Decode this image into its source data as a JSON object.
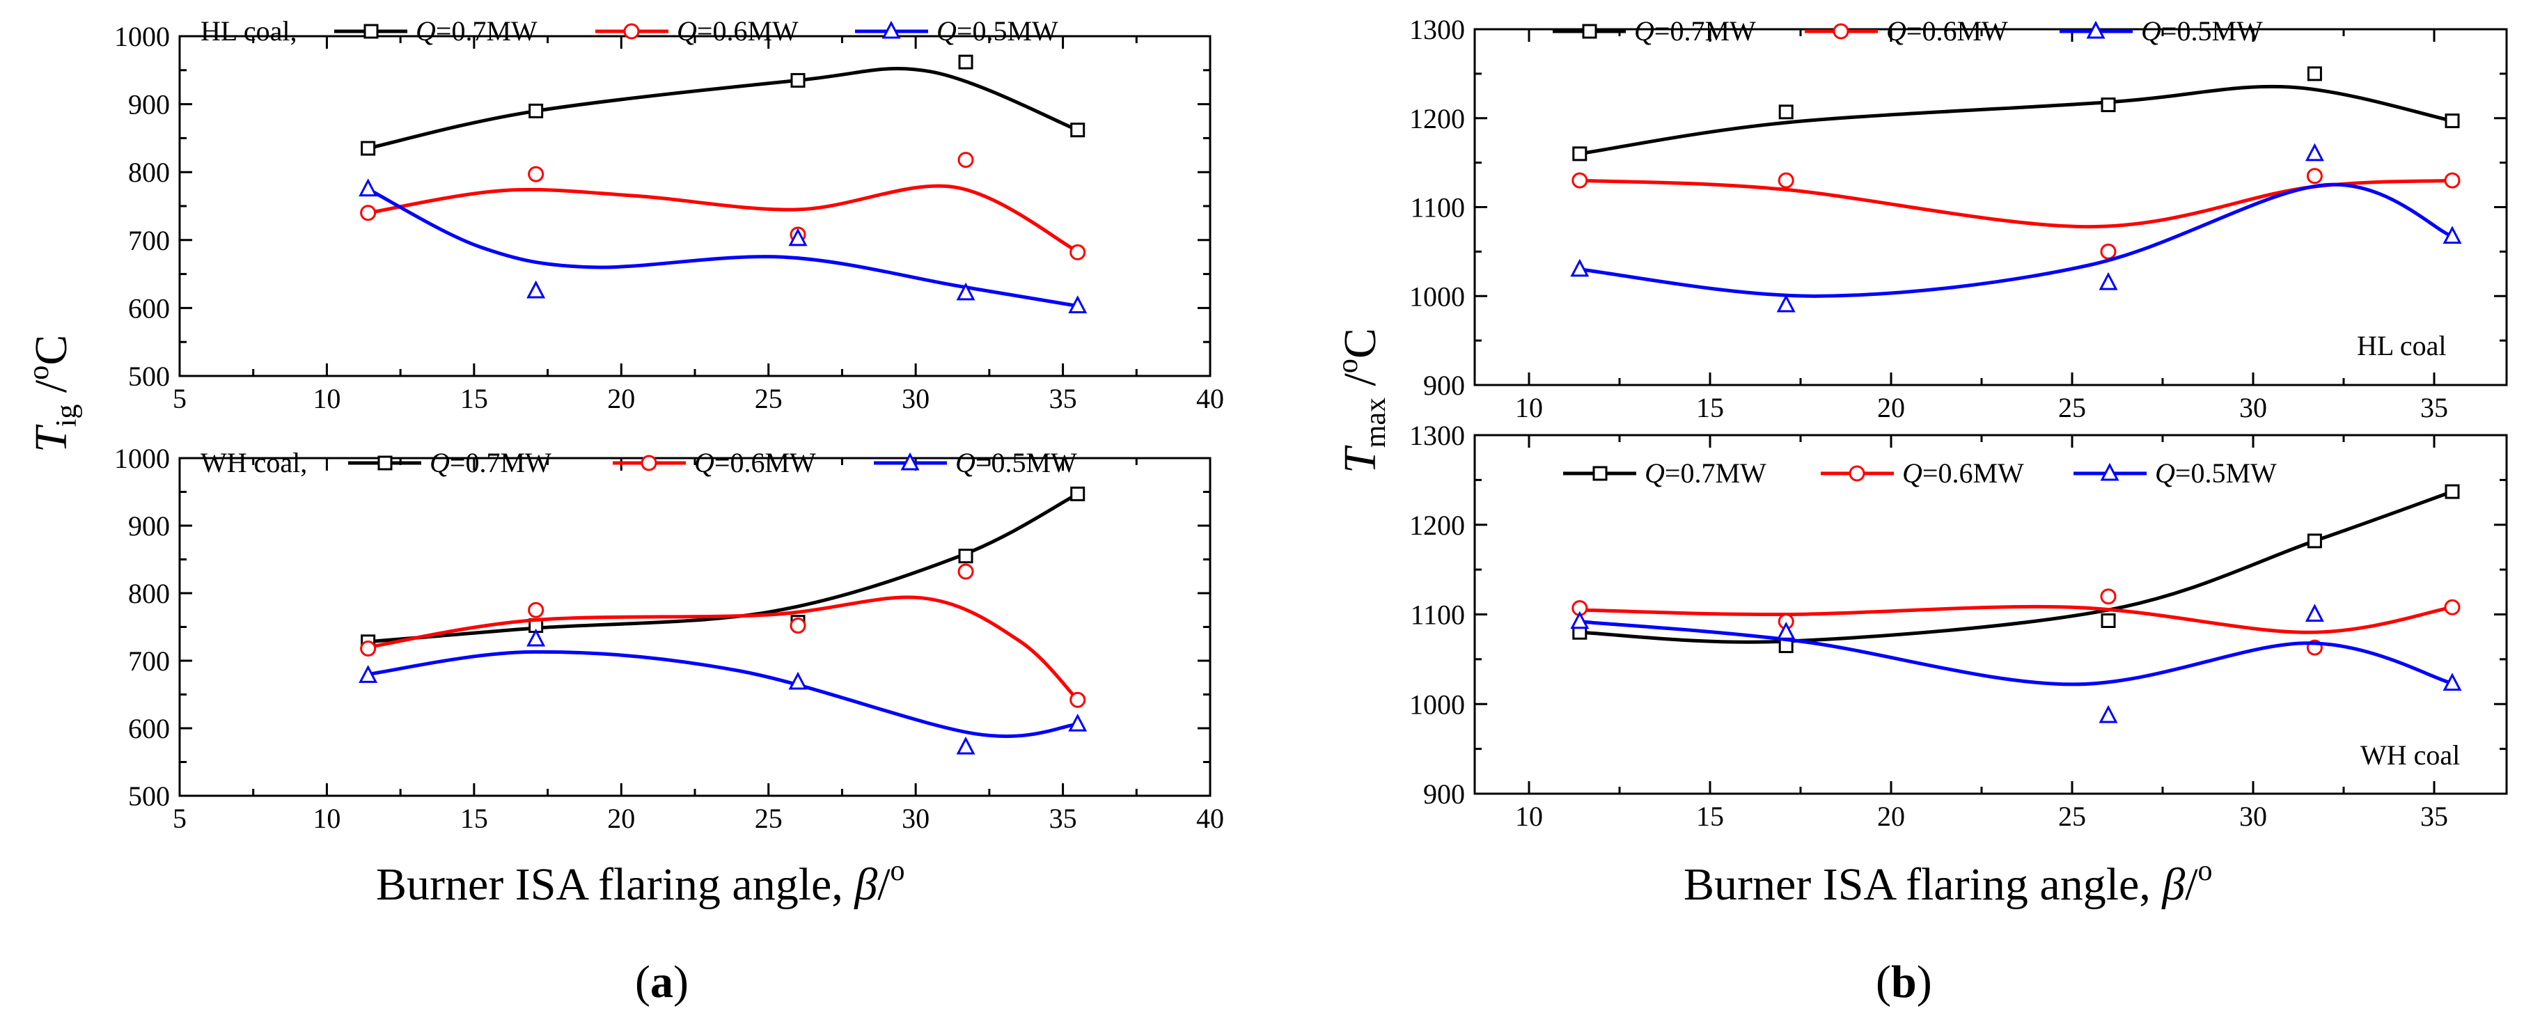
{
  "colors": {
    "Q07": "#000000",
    "Q06": "#ff0000",
    "Q05": "#0000ff"
  },
  "legend": {
    "q_symbol": "Q",
    "q07": "=0.7MW",
    "q06": "=0.6MW",
    "q05": "=0.5MW"
  },
  "panel_a": {
    "label": "(a)",
    "y_label_main": "T",
    "y_label_sub": "ig",
    "y_label_unit": " /",
    "y_label_deg": "o",
    "y_label_c": "C",
    "x_label": "Burner ISA flaring angle, ",
    "x_beta": "β",
    "x_slash": "/",
    "x_deg": "o",
    "top_prefix": "HL coal,",
    "bottom_prefix": "WH coal,"
  },
  "panel_b": {
    "label": "(b)",
    "y_label_main": "T",
    "y_label_sub": "max",
    "y_label_unit": " /",
    "y_label_deg": "o",
    "y_label_c": "C",
    "x_label": "Burner ISA flaring angle, ",
    "x_beta": "β",
    "x_slash": "/",
    "x_deg": "o",
    "top_note": "HL coal",
    "bottom_note": "WH coal"
  },
  "chart_data": [
    {
      "id": "a-top",
      "type": "scatter",
      "description": "Ignition temperature vs. flaring angle, HL coal",
      "xlim": [
        5,
        40
      ],
      "ylim": [
        500,
        1000
      ],
      "xticks": [
        5,
        10,
        15,
        20,
        25,
        30,
        35,
        40
      ],
      "yticks": [
        500,
        600,
        700,
        800,
        900,
        1000
      ],
      "show_x_labels": true,
      "legend_prefix": "HL coal,",
      "x": [
        11.4,
        17.1,
        26.0,
        31.7,
        35.5
      ],
      "series": [
        {
          "key": "Q07",
          "name": "Q=0.7MW",
          "marker": "square",
          "values": [
            835,
            890,
            935,
            962,
            862
          ],
          "fit": [
            [
              11.4,
              835
            ],
            [
              17.1,
              890
            ],
            [
              26.0,
              935
            ],
            [
              30.5,
              948
            ],
            [
              35.5,
              862
            ]
          ]
        },
        {
          "key": "Q06",
          "name": "Q=0.6MW",
          "marker": "circle",
          "values": [
            740,
            797,
            708,
            818,
            682
          ],
          "fit": [
            [
              11.4,
              740
            ],
            [
              16.0,
              773
            ],
            [
              20.5,
              765
            ],
            [
              26.0,
              745
            ],
            [
              31.3,
              778
            ],
            [
              35.5,
              683
            ]
          ]
        },
        {
          "key": "Q05",
          "name": "Q=0.5MW",
          "marker": "triangle",
          "values": [
            775,
            625,
            702,
            622,
            603
          ],
          "fit": [
            [
              11.4,
              775
            ],
            [
              15.2,
              690
            ],
            [
              19.0,
              660
            ],
            [
              25.5,
              675
            ],
            [
              31.5,
              632
            ],
            [
              35.5,
              603
            ]
          ]
        }
      ]
    },
    {
      "id": "a-bottom",
      "type": "scatter",
      "description": "Ignition temperature vs. flaring angle, WH coal",
      "xlim": [
        5,
        40
      ],
      "ylim": [
        500,
        1000
      ],
      "xticks": [
        5,
        10,
        15,
        20,
        25,
        30,
        35,
        40
      ],
      "yticks": [
        500,
        600,
        700,
        800,
        900,
        1000
      ],
      "show_x_labels": true,
      "legend_prefix": "WH coal,",
      "x": [
        11.4,
        17.1,
        26.0,
        31.7,
        35.5
      ],
      "series": [
        {
          "key": "Q07",
          "name": "Q=0.7MW",
          "marker": "square",
          "values": [
            728,
            752,
            757,
            855,
            947
          ],
          "fit": [
            [
              11.4,
              728
            ],
            [
              17.0,
              748
            ],
            [
              25.0,
              772
            ],
            [
              31.5,
              855
            ],
            [
              35.5,
              947
            ]
          ]
        },
        {
          "key": "Q06",
          "name": "Q=0.6MW",
          "marker": "circle",
          "values": [
            718,
            775,
            752,
            832,
            642
          ],
          "fit": [
            [
              11.4,
              720
            ],
            [
              17.0,
              760
            ],
            [
              25.0,
              768
            ],
            [
              30.2,
              793
            ],
            [
              33.5,
              730
            ],
            [
              35.5,
              642
            ]
          ]
        },
        {
          "key": "Q05",
          "name": "Q=0.5MW",
          "marker": "triangle",
          "values": [
            678,
            732,
            668,
            572,
            606
          ],
          "fit": [
            [
              11.4,
              680
            ],
            [
              17.0,
              713
            ],
            [
              24.0,
              685
            ],
            [
              32.0,
              592
            ],
            [
              35.5,
              606
            ]
          ]
        }
      ]
    },
    {
      "id": "b-top",
      "type": "scatter",
      "description": "Maximum temperature vs. flaring angle, HL coal",
      "xlim": [
        8.5,
        37
      ],
      "ylim": [
        900,
        1300
      ],
      "xticks": [
        10,
        15,
        20,
        25,
        30,
        35
      ],
      "yticks": [
        900,
        1000,
        1100,
        1200,
        1300
      ],
      "show_x_labels": true,
      "x": [
        11.4,
        17.1,
        26.0,
        31.7,
        35.5
      ],
      "series": [
        {
          "key": "Q07",
          "name": "Q=0.7MW",
          "marker": "square",
          "values": [
            1160,
            1207,
            1215,
            1250,
            1197
          ],
          "fit": [
            [
              11.4,
              1160
            ],
            [
              17.1,
              1195
            ],
            [
              26.0,
              1218
            ],
            [
              31.0,
              1235
            ],
            [
              35.5,
              1197
            ]
          ]
        },
        {
          "key": "Q06",
          "name": "Q=0.6MW",
          "marker": "circle",
          "values": [
            1130,
            1130,
            1050,
            1135,
            1130
          ],
          "fit": [
            [
              11.4,
              1130
            ],
            [
              17.0,
              1120
            ],
            [
              25.5,
              1078
            ],
            [
              31.5,
              1122
            ],
            [
              35.5,
              1130
            ]
          ]
        },
        {
          "key": "Q05",
          "name": "Q=0.5MW",
          "marker": "triangle",
          "values": [
            1030,
            990,
            1015,
            1160,
            1067
          ],
          "fit": [
            [
              11.4,
              1030
            ],
            [
              18.0,
              1000
            ],
            [
              25.5,
              1035
            ],
            [
              32.0,
              1125
            ],
            [
              35.5,
              1067
            ]
          ]
        }
      ]
    },
    {
      "id": "b-bottom",
      "type": "scatter",
      "description": "Maximum temperature vs. flaring angle, WH coal",
      "xlim": [
        8.5,
        37
      ],
      "ylim": [
        900,
        1300
      ],
      "xticks": [
        10,
        15,
        20,
        25,
        30,
        35
      ],
      "yticks": [
        900,
        1000,
        1100,
        1200,
        1300
      ],
      "show_x_labels": true,
      "x": [
        11.4,
        17.1,
        26.0,
        31.7,
        35.5
      ],
      "series": [
        {
          "key": "Q07",
          "name": "Q=0.7MW",
          "marker": "square",
          "values": [
            1080,
            1065,
            1093,
            1182,
            1237
          ],
          "fit": [
            [
              11.4,
              1080
            ],
            [
              17.1,
              1070
            ],
            [
              26.0,
              1105
            ],
            [
              31.7,
              1182
            ],
            [
              35.5,
              1237
            ]
          ]
        },
        {
          "key": "Q06",
          "name": "Q=0.6MW",
          "marker": "circle",
          "values": [
            1107,
            1092,
            1120,
            1063,
            1108
          ],
          "fit": [
            [
              11.4,
              1105
            ],
            [
              17.1,
              1100
            ],
            [
              25.0,
              1108
            ],
            [
              31.5,
              1080
            ],
            [
              35.5,
              1108
            ]
          ]
        },
        {
          "key": "Q05",
          "name": "Q=0.5MW",
          "marker": "triangle",
          "values": [
            1092,
            1080,
            987,
            1100,
            1023
          ],
          "fit": [
            [
              11.4,
              1092
            ],
            [
              17.5,
              1070
            ],
            [
              25.0,
              1022
            ],
            [
              31.5,
              1068
            ],
            [
              35.5,
              1023
            ]
          ]
        }
      ]
    }
  ]
}
